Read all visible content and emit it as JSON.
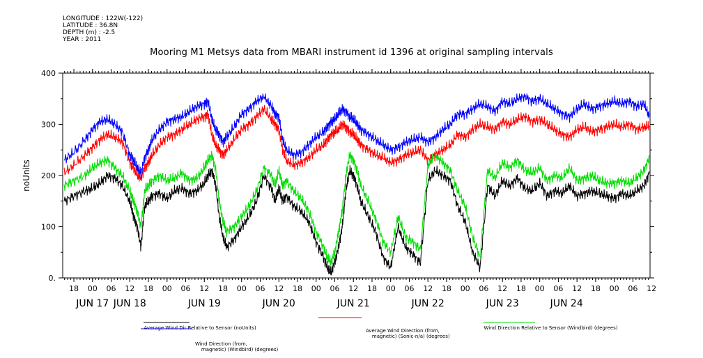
{
  "meta": {
    "longitude": "LONGITUDE : 122W(-122)",
    "latitude": "LATITUDE : 36.8N",
    "depth": "DEPTH (m) : -2.5",
    "year": "YEAR : 2011"
  },
  "chart_data": {
    "type": "line",
    "title": "Mooring M1 Metsys data from MBARI instrument id 1396 at original sampling intervals",
    "ylabel": "noUnits",
    "xlabel": "",
    "ylim": [
      0,
      400
    ],
    "yticks": [
      0,
      100,
      200,
      300,
      400
    ],
    "ytick_labels": [
      "0.",
      "100",
      "200",
      "300",
      "400"
    ],
    "xlim": [
      16.6,
      24.48
    ],
    "hour_ticks": [
      {
        "x": 16.75,
        "label": "18"
      },
      {
        "x": 17.0,
        "label": "00"
      },
      {
        "x": 17.25,
        "label": "06"
      },
      {
        "x": 17.5,
        "label": "12"
      },
      {
        "x": 17.75,
        "label": "18"
      },
      {
        "x": 18.0,
        "label": "00"
      },
      {
        "x": 18.25,
        "label": "06"
      },
      {
        "x": 18.5,
        "label": "12"
      },
      {
        "x": 18.75,
        "label": "18"
      },
      {
        "x": 19.0,
        "label": "00"
      },
      {
        "x": 19.25,
        "label": "06"
      },
      {
        "x": 19.5,
        "label": "12"
      },
      {
        "x": 19.75,
        "label": "18"
      },
      {
        "x": 20.0,
        "label": "00"
      },
      {
        "x": 20.25,
        "label": "06"
      },
      {
        "x": 20.5,
        "label": "12"
      },
      {
        "x": 20.75,
        "label": "18"
      },
      {
        "x": 21.0,
        "label": "00"
      },
      {
        "x": 21.25,
        "label": "06"
      },
      {
        "x": 21.5,
        "label": "12"
      },
      {
        "x": 21.75,
        "label": "18"
      },
      {
        "x": 22.0,
        "label": "00"
      },
      {
        "x": 22.25,
        "label": "06"
      },
      {
        "x": 22.5,
        "label": "12"
      },
      {
        "x": 22.75,
        "label": "18"
      },
      {
        "x": 23.0,
        "label": "00"
      },
      {
        "x": 23.25,
        "label": "06"
      },
      {
        "x": 23.5,
        "label": "12"
      },
      {
        "x": 23.75,
        "label": "18"
      },
      {
        "x": 24.0,
        "label": "00"
      },
      {
        "x": 24.25,
        "label": "06"
      },
      {
        "x": 24.5,
        "label": "12"
      }
    ],
    "day_labels": [
      {
        "x": 17.0,
        "label": "JUN 17"
      },
      {
        "x": 17.5,
        "label": "JUN 18"
      },
      {
        "x": 18.5,
        "label": "JUN 19"
      },
      {
        "x": 19.5,
        "label": "JUN 20"
      },
      {
        "x": 20.5,
        "label": "JUN 21"
      },
      {
        "x": 21.5,
        "label": "JUN 22"
      },
      {
        "x": 22.5,
        "label": "JUN 23"
      },
      {
        "x": 23.36,
        "label": "JUN 24"
      }
    ],
    "series": [
      {
        "name": "Average Wind Dir Relative to Sensor (noUnits)",
        "color": "#000000",
        "x": [
          16.62,
          16.75,
          16.9,
          17.0,
          17.1,
          17.2,
          17.3,
          17.4,
          17.5,
          17.55,
          17.6,
          17.65,
          17.7,
          17.75,
          17.8,
          17.9,
          18.0,
          18.1,
          18.2,
          18.3,
          18.4,
          18.5,
          18.55,
          18.6,
          18.65,
          18.7,
          18.75,
          18.8,
          18.9,
          19.0,
          19.1,
          19.2,
          19.3,
          19.4,
          19.45,
          19.5,
          19.55,
          19.6,
          19.7,
          19.8,
          19.9,
          20.0,
          20.1,
          20.15,
          20.2,
          20.25,
          20.3,
          20.35,
          20.4,
          20.45,
          20.5,
          20.55,
          20.6,
          20.7,
          20.8,
          20.9,
          21.0,
          21.1,
          21.2,
          21.3,
          21.4,
          21.5,
          21.6,
          21.7,
          21.8,
          21.9,
          22.0,
          22.1,
          22.2,
          22.3,
          22.4,
          22.5,
          22.6,
          22.7,
          22.8,
          22.9,
          23.0,
          23.1,
          23.2,
          23.3,
          23.4,
          23.5,
          23.6,
          23.7,
          23.8,
          23.9,
          24.0,
          24.1,
          24.2,
          24.3,
          24.4,
          24.47
        ],
        "y": [
          150,
          160,
          170,
          175,
          185,
          200,
          195,
          180,
          150,
          120,
          100,
          60,
          140,
          150,
          160,
          165,
          155,
          170,
          175,
          165,
          170,
          185,
          200,
          210,
          185,
          120,
          80,
          60,
          75,
          100,
          120,
          150,
          200,
          175,
          150,
          175,
          150,
          160,
          140,
          130,
          110,
          70,
          40,
          20,
          10,
          30,
          60,
          100,
          170,
          210,
          200,
          180,
          150,
          120,
          90,
          40,
          20,
          100,
          60,
          45,
          30,
          190,
          210,
          200,
          190,
          140,
          110,
          50,
          20,
          180,
          160,
          190,
          180,
          195,
          175,
          170,
          185,
          160,
          170,
          165,
          180,
          160,
          165,
          170,
          165,
          160,
          155,
          165,
          160,
          170,
          180,
          205
        ]
      },
      {
        "name": "Average Wind Direction (from, magnetic) (Sonic-n/a) (degrees)",
        "color": "#ff0000",
        "x": [
          16.62,
          16.75,
          16.9,
          17.0,
          17.1,
          17.2,
          17.3,
          17.4,
          17.5,
          17.55,
          17.6,
          17.65,
          17.7,
          17.75,
          17.8,
          17.9,
          18.0,
          18.1,
          18.2,
          18.3,
          18.4,
          18.5,
          18.55,
          18.6,
          18.65,
          18.7,
          18.75,
          18.8,
          18.9,
          19.0,
          19.1,
          19.2,
          19.3,
          19.4,
          19.45,
          19.5,
          19.55,
          19.6,
          19.7,
          19.8,
          19.9,
          20.0,
          20.1,
          20.15,
          20.2,
          20.25,
          20.3,
          20.35,
          20.4,
          20.45,
          20.5,
          20.55,
          20.6,
          20.7,
          20.8,
          20.9,
          21.0,
          21.1,
          21.2,
          21.3,
          21.4,
          21.5,
          21.6,
          21.7,
          21.8,
          21.9,
          22.0,
          22.1,
          22.2,
          22.3,
          22.4,
          22.5,
          22.6,
          22.7,
          22.8,
          22.9,
          23.0,
          23.1,
          23.2,
          23.3,
          23.4,
          23.5,
          23.6,
          23.7,
          23.8,
          23.9,
          24.0,
          24.1,
          24.2,
          24.3,
          24.4,
          24.47
        ],
        "y": [
          205,
          220,
          240,
          255,
          270,
          280,
          275,
          265,
          225,
          215,
          200,
          195,
          215,
          225,
          240,
          260,
          275,
          280,
          290,
          300,
          310,
          315,
          320,
          280,
          260,
          250,
          240,
          250,
          270,
          290,
          300,
          315,
          330,
          310,
          300,
          290,
          250,
          230,
          220,
          225,
          235,
          250,
          260,
          270,
          280,
          285,
          290,
          300,
          295,
          285,
          280,
          270,
          260,
          250,
          240,
          235,
          225,
          230,
          240,
          245,
          250,
          230,
          240,
          250,
          260,
          280,
          275,
          290,
          300,
          295,
          290,
          305,
          300,
          310,
          315,
          305,
          310,
          300,
          290,
          280,
          275,
          290,
          295,
          285,
          290,
          295,
          300,
          295,
          300,
          290,
          295,
          295
        ]
      },
      {
        "name": "Wind Direction Relative to Sensor (Windbird) (degrees)",
        "color": "#00dd00",
        "x": [
          16.62,
          16.75,
          16.9,
          17.0,
          17.1,
          17.2,
          17.3,
          17.4,
          17.5,
          17.55,
          17.6,
          17.65,
          17.7,
          17.75,
          17.8,
          17.9,
          18.0,
          18.1,
          18.2,
          18.3,
          18.4,
          18.5,
          18.55,
          18.6,
          18.65,
          18.7,
          18.75,
          18.8,
          18.9,
          19.0,
          19.1,
          19.2,
          19.3,
          19.4,
          19.45,
          19.5,
          19.55,
          19.6,
          19.7,
          19.8,
          19.9,
          20.0,
          20.1,
          20.15,
          20.2,
          20.25,
          20.3,
          20.35,
          20.4,
          20.45,
          20.5,
          20.55,
          20.6,
          20.7,
          20.8,
          20.9,
          21.0,
          21.1,
          21.2,
          21.3,
          21.4,
          21.5,
          21.6,
          21.7,
          21.8,
          21.9,
          22.0,
          22.1,
          22.2,
          22.3,
          22.4,
          22.5,
          22.6,
          22.7,
          22.8,
          22.9,
          23.0,
          23.1,
          23.2,
          23.3,
          23.4,
          23.5,
          23.6,
          23.7,
          23.8,
          23.9,
          24.0,
          24.1,
          24.2,
          24.3,
          24.4,
          24.47
        ],
        "y": [
          180,
          190,
          200,
          215,
          225,
          230,
          215,
          200,
          170,
          150,
          130,
          100,
          170,
          180,
          190,
          200,
          190,
          195,
          205,
          190,
          195,
          215,
          230,
          240,
          215,
          150,
          110,
          90,
          100,
          120,
          140,
          170,
          215,
          200,
          180,
          210,
          180,
          190,
          170,
          155,
          130,
          90,
          60,
          40,
          30,
          50,
          90,
          130,
          200,
          240,
          230,
          210,
          180,
          150,
          115,
          70,
          50,
          120,
          80,
          70,
          55,
          220,
          240,
          225,
          210,
          170,
          140,
          80,
          40,
          210,
          195,
          225,
          215,
          230,
          210,
          205,
          215,
          190,
          200,
          195,
          215,
          190,
          195,
          200,
          190,
          185,
          185,
          190,
          185,
          195,
          210,
          235
        ]
      },
      {
        "name": "Wind Direction (from, magnetic) (Windbird) (degrees)",
        "color": "#0000ff",
        "x": [
          16.62,
          16.75,
          16.9,
          17.0,
          17.1,
          17.2,
          17.3,
          17.4,
          17.5,
          17.55,
          17.6,
          17.65,
          17.7,
          17.75,
          17.8,
          17.9,
          18.0,
          18.1,
          18.2,
          18.3,
          18.4,
          18.5,
          18.55,
          18.6,
          18.65,
          18.7,
          18.75,
          18.8,
          18.9,
          19.0,
          19.1,
          19.2,
          19.3,
          19.4,
          19.45,
          19.5,
          19.55,
          19.6,
          19.7,
          19.8,
          19.9,
          20.0,
          20.1,
          20.15,
          20.2,
          20.25,
          20.3,
          20.35,
          20.4,
          20.45,
          20.5,
          20.55,
          20.6,
          20.7,
          20.8,
          20.9,
          21.0,
          21.1,
          21.2,
          21.3,
          21.4,
          21.5,
          21.6,
          21.7,
          21.8,
          21.9,
          22.0,
          22.1,
          22.2,
          22.3,
          22.4,
          22.5,
          22.6,
          22.7,
          22.8,
          22.9,
          23.0,
          23.1,
          23.2,
          23.3,
          23.4,
          23.5,
          23.6,
          23.7,
          23.8,
          23.9,
          24.0,
          24.1,
          24.2,
          24.3,
          24.4,
          24.47
        ],
        "y": [
          230,
          245,
          270,
          290,
          305,
          310,
          300,
          285,
          240,
          230,
          215,
          205,
          235,
          250,
          270,
          290,
          305,
          310,
          315,
          325,
          335,
          340,
          345,
          310,
          290,
          280,
          265,
          275,
          295,
          320,
          330,
          345,
          355,
          335,
          320,
          315,
          270,
          250,
          240,
          245,
          260,
          275,
          285,
          295,
          305,
          310,
          320,
          330,
          325,
          315,
          310,
          300,
          290,
          280,
          270,
          260,
          250,
          255,
          265,
          270,
          275,
          265,
          275,
          290,
          300,
          320,
          320,
          330,
          340,
          335,
          325,
          345,
          340,
          350,
          355,
          345,
          350,
          340,
          330,
          320,
          315,
          330,
          340,
          330,
          335,
          340,
          345,
          340,
          345,
          335,
          340,
          315
        ]
      }
    ],
    "legend": [
      "Average Wind Dir Relative to Sensor (noUnits)",
      "Average Wind Direction (from,\n    magnetic) (Sonic-n/a) (degrees)",
      "Wind Direction Relative to Sensor (Windbird) (degrees)",
      "Wind Direction (from,\n    magnetic) (Windbird) (degrees)"
    ]
  }
}
